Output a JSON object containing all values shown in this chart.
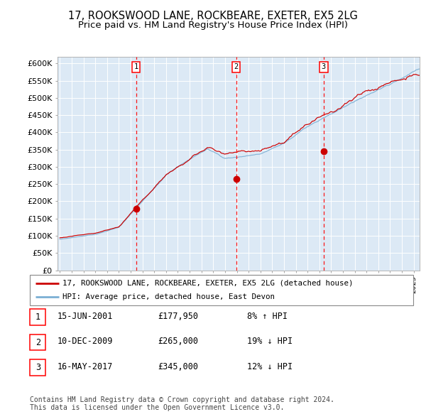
{
  "title": "17, ROOKSWOOD LANE, ROCKBEARE, EXETER, EX5 2LG",
  "subtitle": "Price paid vs. HM Land Registry's House Price Index (HPI)",
  "ylabel_ticks": [
    "£0",
    "£50K",
    "£100K",
    "£150K",
    "£200K",
    "£250K",
    "£300K",
    "£350K",
    "£400K",
    "£450K",
    "£500K",
    "£550K",
    "£600K"
  ],
  "ylim": [
    0,
    620000
  ],
  "yticks": [
    0,
    50000,
    100000,
    150000,
    200000,
    250000,
    300000,
    350000,
    400000,
    450000,
    500000,
    550000,
    600000
  ],
  "xlim_start": 1994.8,
  "xlim_end": 2025.5,
  "plot_bg": "#dce9f5",
  "sale_color": "#cc0000",
  "hpi_color": "#7bafd4",
  "sale_dates": [
    2001.46,
    2009.94,
    2017.37
  ],
  "sale_prices": [
    177950,
    265000,
    345000
  ],
  "annotation_labels": [
    "1",
    "2",
    "3"
  ],
  "legend_sale": "17, ROOKSWOOD LANE, ROCKBEARE, EXETER, EX5 2LG (detached house)",
  "legend_hpi": "HPI: Average price, detached house, East Devon",
  "table_data": [
    [
      "1",
      "15-JUN-2001",
      "£177,950",
      "8% ↑ HPI"
    ],
    [
      "2",
      "10-DEC-2009",
      "£265,000",
      "19% ↓ HPI"
    ],
    [
      "3",
      "16-MAY-2017",
      "£345,000",
      "12% ↓ HPI"
    ]
  ],
  "footer": "Contains HM Land Registry data © Crown copyright and database right 2024.\nThis data is licensed under the Open Government Licence v3.0.",
  "title_fontsize": 10.5,
  "subtitle_fontsize": 9.5
}
